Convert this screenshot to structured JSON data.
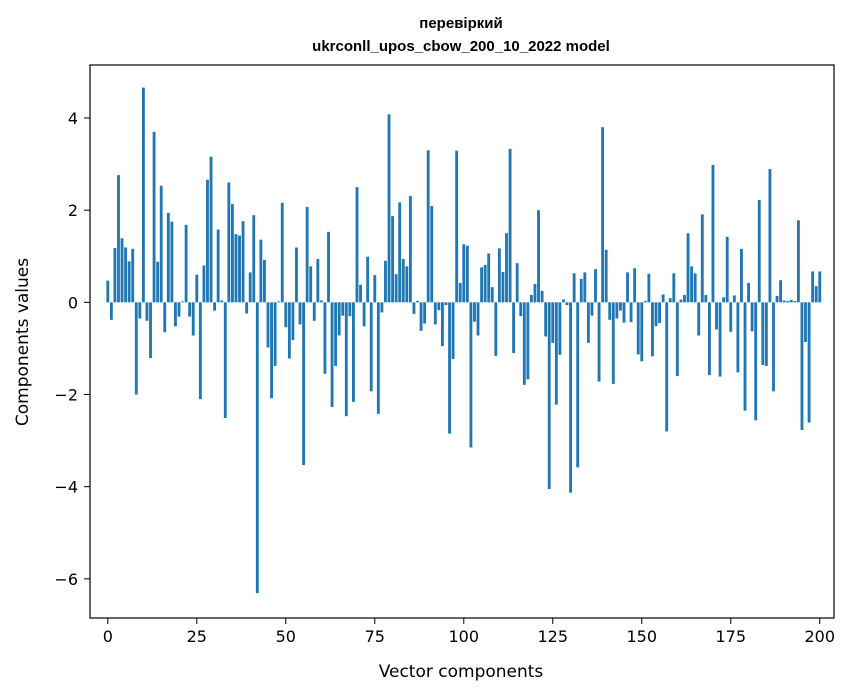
{
  "chart_data": {
    "type": "bar",
    "title": [
      "перевіркий",
      "ukrconll_upos_cbow_200_10_2022 model"
    ],
    "xlabel": "Vector components",
    "ylabel": "Components values",
    "xlim": [
      -5,
      204
    ],
    "ylim": [
      -6.85,
      5.15
    ],
    "xticks": [
      0,
      25,
      50,
      75,
      100,
      125,
      150,
      175,
      200
    ],
    "yticks": [
      -6,
      -4,
      -2,
      0,
      2,
      4
    ],
    "bar_color": "#1f77b4",
    "grid": false,
    "values": [
      0.47,
      -0.38,
      1.18,
      2.76,
      1.39,
      1.19,
      0.89,
      1.16,
      -2.0,
      -0.35,
      4.66,
      -0.4,
      -1.21,
      3.7,
      0.88,
      2.53,
      -0.65,
      1.94,
      1.75,
      -0.52,
      -0.31,
      0.02,
      1.68,
      -0.31,
      -0.72,
      0.6,
      -2.1,
      0.8,
      2.66,
      3.16,
      -0.18,
      1.58,
      0.04,
      -2.51,
      2.6,
      2.13,
      1.48,
      1.45,
      1.76,
      -0.24,
      0.65,
      1.89,
      -6.31,
      1.36,
      0.92,
      -0.98,
      -2.08,
      -1.38,
      0.02,
      2.16,
      -0.54,
      -1.22,
      -0.82,
      1.19,
      -0.48,
      -3.53,
      2.07,
      0.78,
      -0.4,
      0.94,
      0.04,
      -1.55,
      1.53,
      -2.27,
      -1.38,
      -0.72,
      -0.29,
      -2.47,
      -0.3,
      -2.16,
      2.5,
      0.38,
      -0.52,
      0.99,
      -1.93,
      0.59,
      -2.42,
      -0.22,
      0.9,
      4.08,
      1.87,
      0.61,
      2.17,
      0.94,
      0.78,
      2.31,
      -0.25,
      0.03,
      -0.62,
      -0.46,
      3.3,
      2.09,
      -0.48,
      -0.17,
      -0.95,
      -0.06,
      -2.85,
      -1.23,
      3.29,
      0.42,
      1.26,
      1.23,
      -3.15,
      -0.42,
      -0.72,
      0.76,
      0.81,
      1.06,
      0.33,
      -1.16,
      1.17,
      0.66,
      1.5,
      3.33,
      -1.1,
      0.85,
      -0.3,
      -1.79,
      -1.67,
      0.16,
      0.4,
      2.0,
      0.25,
      -0.74,
      -4.05,
      -0.88,
      -2.22,
      -1.14,
      0.06,
      -0.06,
      -4.13,
      0.63,
      -3.58,
      0.51,
      0.65,
      -0.88,
      -0.29,
      0.72,
      -1.72,
      3.8,
      1.14,
      -0.38,
      -1.77,
      -0.35,
      -0.18,
      -0.44,
      0.65,
      -0.43,
      0.74,
      -1.13,
      -1.28,
      0.03,
      0.62,
      -1.17,
      -0.52,
      -0.45,
      0.17,
      -2.8,
      0.09,
      0.63,
      -1.6,
      0.06,
      0.16,
      1.5,
      0.78,
      0.63,
      -0.72,
      1.91,
      0.16,
      -1.58,
      2.98,
      -0.59,
      -1.61,
      0.11,
      1.42,
      -0.64,
      0.15,
      -1.52,
      1.16,
      -2.35,
      0.42,
      -0.63,
      -2.56,
      2.22,
      -1.36,
      -1.38,
      2.89,
      -1.93,
      0.14,
      0.48,
      0.04,
      0.03,
      0.05,
      0.03,
      1.78,
      -2.77,
      -0.86,
      -2.61,
      0.67,
      0.35,
      0.67
    ]
  }
}
